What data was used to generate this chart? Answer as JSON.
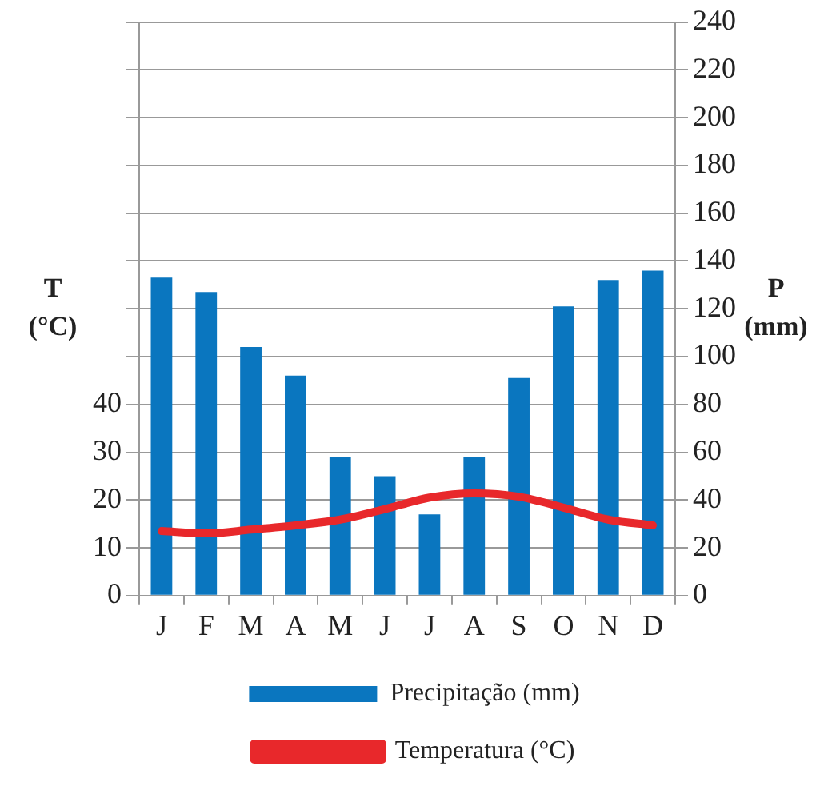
{
  "chart_data": {
    "type": "bar",
    "categories": [
      "J",
      "F",
      "M",
      "A",
      "M",
      "J",
      "J",
      "A",
      "S",
      "O",
      "N",
      "D"
    ],
    "series": [
      {
        "name": "Precipitação (mm)",
        "axis": "y2",
        "color": "#0a76bf",
        "values": [
          133,
          127,
          104,
          92,
          58,
          50,
          34,
          58,
          91,
          121,
          132,
          136
        ]
      },
      {
        "name": "Temperatura (°C)",
        "type": "line",
        "axis": "y",
        "color": "#e8282b",
        "marker": "none",
        "values": [
          13.5,
          13,
          13.8,
          14.7,
          15.9,
          18.1,
          20.5,
          21.4,
          20.7,
          18.4,
          15.9,
          14.7
        ]
      }
    ],
    "ylabel": "T (°C)",
    "y2label": "P (mm)",
    "ylim": [
      0,
      120
    ],
    "yticks": [
      0,
      10,
      20,
      30,
      40,
      {
        "value": 50,
        "label": null
      },
      {
        "value": 60,
        "label": null
      },
      {
        "value": 70,
        "label": null
      },
      {
        "value": 80,
        "label": null
      },
      {
        "value": 90,
        "label": null
      },
      {
        "value": 100,
        "label": null
      },
      {
        "value": 110,
        "label": null
      },
      {
        "value": 120,
        "label": null
      }
    ],
    "y2lim": [
      0,
      240
    ],
    "y2ticks": [
      0,
      20,
      40,
      60,
      80,
      100,
      120,
      140,
      160,
      180,
      200,
      220,
      240
    ],
    "grid": "y",
    "legend": "bottom"
  }
}
